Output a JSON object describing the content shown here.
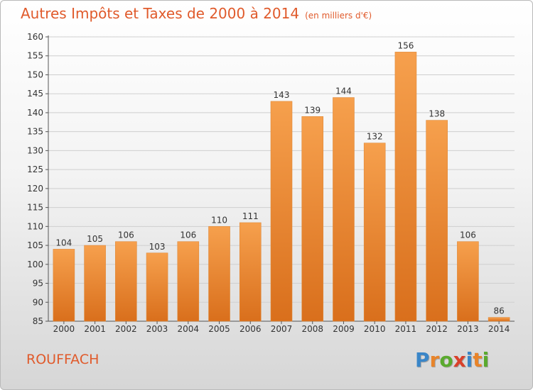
{
  "title": "Autres Impôts et Taxes de 2000 à 2014",
  "unit_note": "(en milliers d'€)",
  "commune": "ROUFFACH",
  "logo": {
    "text": "Proxiti",
    "letter_colors": [
      "#3a86c8",
      "#e8842a",
      "#5aaa2e",
      "#d9412b",
      "#3a86c8",
      "#e8842a",
      "#5aaa2e"
    ]
  },
  "colors": {
    "bar_top": "#f6a04d",
    "bar_bottom": "#d96f1c",
    "grid": "#cfcfcf",
    "title": "#e05a2b"
  },
  "chart_data": {
    "type": "bar",
    "categories": [
      "2000",
      "2001",
      "2002",
      "2003",
      "2004",
      "2005",
      "2006",
      "2007",
      "2008",
      "2009",
      "2010",
      "2011",
      "2012",
      "2013",
      "2014"
    ],
    "values": [
      104,
      105,
      106,
      103,
      106,
      110,
      111,
      143,
      139,
      144,
      132,
      156,
      138,
      106,
      86
    ],
    "ylim": [
      85,
      160
    ],
    "yticks": [
      85,
      90,
      95,
      100,
      105,
      110,
      115,
      120,
      125,
      130,
      135,
      140,
      145,
      150,
      155,
      160
    ],
    "grid": true,
    "data_labels": true
  }
}
